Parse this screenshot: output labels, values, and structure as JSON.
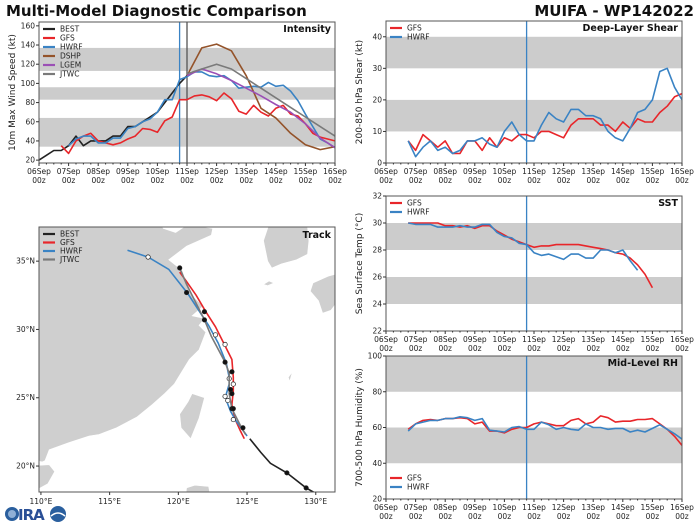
{
  "header": {
    "title": "Multi-Model Diagnostic Comparison",
    "storm": "MUIFA - WP142022"
  },
  "logo": {
    "text": "CIRA"
  },
  "colors": {
    "BEST": "#222222",
    "GFS": "#e8262a",
    "HWRF": "#3a83c4",
    "DSHP": "#94532a",
    "LGEM": "#9b4fb5",
    "JTWC": "#7a7a7a",
    "band": "#cccccc"
  },
  "x_ticks": [
    {
      "date": "06Sep",
      "hour": "00z"
    },
    {
      "date": "07Sep",
      "hour": "00z"
    },
    {
      "date": "08Sep",
      "hour": "00z"
    },
    {
      "date": "09Sep",
      "hour": "00z"
    },
    {
      "date": "10Sep",
      "hour": "00z"
    },
    {
      "date": "11Sep",
      "hour": "00z"
    },
    {
      "date": "12Sep",
      "hour": "00z"
    },
    {
      "date": "13Sep",
      "hour": "00z"
    },
    {
      "date": "14Sep",
      "hour": "00z"
    },
    {
      "date": "15Sep",
      "hour": "00z"
    },
    {
      "date": "16Sep",
      "hour": "00z"
    }
  ],
  "chart_data": [
    {
      "id": "intensity",
      "type": "line",
      "title": "Intensity",
      "ylabel": "10m Max Wind Speed (kt)",
      "xlim": [
        "06Sep00z",
        "16Sep00z"
      ],
      "ylim": [
        17,
        164
      ],
      "yticks": [
        20,
        40,
        60,
        80,
        100,
        120,
        140,
        160
      ],
      "bands": [
        [
          34,
          64
        ],
        [
          83,
          96
        ],
        [
          113,
          137
        ]
      ],
      "vlines": [
        {
          "time": "10Sep18z",
          "color": "#3a83c4"
        },
        {
          "time": "11Sep00z",
          "color": "#555555"
        }
      ],
      "legend": "top-left",
      "series": [
        {
          "name": "BEST",
          "start": "06Sep00z",
          "step_hours": 6,
          "values": [
            20,
            25,
            30,
            30,
            35,
            45,
            35,
            40,
            40,
            40,
            45,
            45,
            55,
            55,
            60,
            65,
            70,
            80,
            90,
            100,
            108
          ]
        },
        {
          "name": "GFS",
          "start": "06Sep18z",
          "step_hours": 6,
          "values": [
            35,
            27,
            40,
            45,
            48,
            40,
            38,
            36,
            38,
            42,
            45,
            53,
            52,
            49,
            61,
            65,
            83,
            83,
            87,
            88,
            86,
            82,
            90,
            84,
            71,
            68,
            77,
            70,
            66,
            74,
            77,
            68,
            66,
            58,
            48,
            44,
            42,
            40
          ]
        },
        {
          "name": "HWRF",
          "start": "07Sep00z",
          "step_hours": 6,
          "values": [
            35,
            42,
            45,
            45,
            38,
            38,
            43,
            43,
            53,
            55,
            60,
            63,
            70,
            83,
            83,
            104,
            107,
            112,
            112,
            108,
            107,
            108,
            103,
            95,
            96,
            97,
            96,
            101,
            97,
            98,
            92,
            82,
            68,
            55,
            42,
            38,
            33
          ]
        },
        {
          "name": "DSHP",
          "start": "11Sep00z",
          "step_hours": 12,
          "values": [
            108,
            137,
            141,
            134,
            108,
            74,
            64,
            48,
            36,
            31,
            34
          ]
        },
        {
          "name": "LGEM",
          "start": "11Sep00z",
          "step_hours": 12,
          "values": [
            108,
            115,
            110,
            103,
            95,
            87,
            78,
            70,
            58,
            43,
            33
          ]
        },
        {
          "name": "JTWC",
          "start": "11Sep00z",
          "step_hours": 12,
          "values": [
            110,
            115,
            120,
            115,
            105,
            95,
            85,
            75,
            65,
            55,
            45
          ]
        }
      ]
    },
    {
      "id": "shear",
      "type": "line",
      "title": "Deep-Layer Shear",
      "ylabel": "200-850 hPa Shear (kt)",
      "xlim": [
        "06Sep00z",
        "16Sep00z"
      ],
      "ylim": [
        0,
        45
      ],
      "yticks": [
        0,
        10,
        20,
        30,
        40
      ],
      "bands": [
        [
          10,
          20
        ],
        [
          30,
          40
        ]
      ],
      "vlines": [
        {
          "time": "10Sep18z",
          "color": "#3a83c4"
        }
      ],
      "legend": "top-left",
      "series": [
        {
          "name": "GFS",
          "start": "06Sep18z",
          "step_hours": 6,
          "values": [
            7,
            4,
            9,
            7,
            5,
            7,
            3,
            3,
            7,
            7,
            4,
            8,
            5,
            8,
            7,
            9,
            9,
            8,
            10,
            10,
            9,
            8,
            12,
            14,
            14,
            14,
            12,
            12,
            10,
            13,
            11,
            14,
            13,
            13,
            16,
            18,
            21,
            22
          ]
        },
        {
          "name": "HWRF",
          "start": "06Sep18z",
          "step_hours": 6,
          "values": [
            7,
            2,
            5,
            7,
            4,
            5,
            3,
            4,
            7,
            7,
            8,
            6,
            5,
            10,
            13,
            9,
            7,
            7,
            12,
            16,
            14,
            13,
            17,
            17,
            15,
            15,
            14,
            10,
            8,
            7,
            11,
            16,
            17,
            20,
            29,
            30,
            24,
            20
          ]
        }
      ]
    },
    {
      "id": "sst",
      "type": "line",
      "title": "SST",
      "ylabel": "Sea Surface Temp (°C)",
      "xlim": [
        "06Sep00z",
        "16Sep00z"
      ],
      "ylim": [
        22,
        32
      ],
      "yticks": [
        22,
        24,
        26,
        28,
        30,
        32
      ],
      "bands": [
        [
          24,
          26
        ],
        [
          28,
          30
        ],
        [
          32,
          34
        ]
      ],
      "vlines": [
        {
          "time": "10Sep18z",
          "color": "#3a83c4"
        }
      ],
      "legend": "top-left",
      "series": [
        {
          "name": "GFS",
          "start": "06Sep18z",
          "step_hours": 6,
          "values": [
            30,
            30,
            30,
            30,
            30,
            29.8,
            29.8,
            29.7,
            29.8,
            29.6,
            29.8,
            29.8,
            29.4,
            29.1,
            28.8,
            28.6,
            28.4,
            28.2,
            28.3,
            28.3,
            28.4,
            28.4,
            28.4,
            28.4,
            28.3,
            28.2,
            28.1,
            28.0,
            27.8,
            27.7,
            27.4,
            26.9,
            26.2,
            25.2
          ]
        },
        {
          "name": "HWRF",
          "start": "06Sep18z",
          "step_hours": 6,
          "values": [
            30,
            29.9,
            29.9,
            29.9,
            29.7,
            29.7,
            29.7,
            29.8,
            29.7,
            29.7,
            29.9,
            29.9,
            29.3,
            29.0,
            28.9,
            28.5,
            28.4,
            27.8,
            27.6,
            27.7,
            27.5,
            27.3,
            27.7,
            27.7,
            27.4,
            27.4,
            28.0,
            28.0,
            27.8,
            28.0,
            27.2,
            26.5
          ]
        }
      ]
    },
    {
      "id": "rh",
      "type": "line",
      "title": "Mid-Level RH",
      "ylabel": "700-500 hPa Humidity (%)",
      "xlim": [
        "06Sep00z",
        "16Sep00z"
      ],
      "ylim": [
        20,
        100
      ],
      "yticks": [
        20,
        40,
        60,
        80,
        100
      ],
      "bands": [
        [
          40,
          60
        ],
        [
          80,
          100
        ]
      ],
      "vlines": [
        {
          "time": "10Sep18z",
          "color": "#3a83c4"
        }
      ],
      "legend": "bottom-left",
      "series": [
        {
          "name": "GFS",
          "start": "06Sep18z",
          "step_hours": 6,
          "values": [
            59,
            62,
            64,
            64.5,
            64,
            65,
            65,
            65.5,
            65,
            62,
            63,
            58,
            58,
            57,
            59,
            60,
            60,
            62,
            63,
            62,
            61,
            61,
            64,
            65,
            62,
            63,
            66.5,
            65.5,
            63,
            63.5,
            63.5,
            64.5,
            64.5,
            65,
            62,
            59,
            55,
            50
          ]
        },
        {
          "name": "HWRF",
          "start": "06Sep18z",
          "step_hours": 6,
          "values": [
            58,
            62,
            63,
            64,
            64,
            65,
            65,
            66,
            65.5,
            64,
            65,
            58.5,
            58,
            57.5,
            60,
            60.5,
            59,
            59,
            63,
            61.5,
            59,
            60,
            59,
            58.5,
            62,
            60,
            60,
            59,
            59.5,
            59.5,
            57.5,
            58.5,
            57.5,
            59.5,
            61.5,
            59,
            56.5,
            53.5
          ]
        }
      ]
    },
    {
      "id": "track",
      "type": "map",
      "title": "Track",
      "lon_range": [
        109.86,
        131.4
      ],
      "lat_range": [
        18.1,
        37.5
      ],
      "lon_ticks": [
        {
          "v": 110,
          "label": "110°E"
        },
        {
          "v": 115,
          "label": "115°E"
        },
        {
          "v": 120,
          "label": "120°E"
        },
        {
          "v": 125,
          "label": "125°E"
        },
        {
          "v": 130,
          "label": "130°E"
        }
      ],
      "lat_ticks": [
        {
          "v": 20,
          "label": "20°N"
        },
        {
          "v": 25,
          "label": "25°N"
        },
        {
          "v": 30,
          "label": "30°N"
        },
        {
          "v": 35,
          "label": "35°N"
        }
      ],
      "legend": "top-left",
      "tracks": [
        {
          "name": "BEST",
          "points": [
            [
              130.0,
              18.0
            ],
            [
              129.3,
              18.4
            ],
            [
              127.9,
              19.5
            ],
            [
              126.7,
              20.2
            ],
            [
              126.0,
              21.0
            ],
            [
              125.2,
              22.0
            ]
          ],
          "markers": "filled",
          "marker_points": [
            [
              127.9,
              19.5
            ],
            [
              129.3,
              18.4
            ]
          ]
        },
        {
          "name": "GFS",
          "points": [
            [
              124.8,
              22.0
            ],
            [
              124.5,
              22.6
            ],
            [
              124.1,
              23.5
            ],
            [
              123.9,
              24.5
            ],
            [
              124.0,
              25.5
            ],
            [
              124.0,
              26.5
            ],
            [
              123.9,
              27.8
            ],
            [
              123.3,
              29.0
            ],
            [
              122.7,
              30.2
            ],
            [
              122.0,
              31.3
            ],
            [
              121.3,
              32.5
            ],
            [
              120.6,
              33.5
            ],
            [
              120.1,
              34.2
            ]
          ]
        },
        {
          "name": "HWRF",
          "points": [
            [
              125.0,
              22.2
            ],
            [
              124.2,
              23.3
            ],
            [
              123.8,
              24.0
            ],
            [
              123.5,
              24.8
            ],
            [
              123.5,
              25.3
            ],
            [
              123.7,
              26.0
            ],
            [
              123.7,
              26.5
            ],
            [
              123.5,
              27.5
            ],
            [
              122.9,
              29.0
            ],
            [
              122.2,
              30.3
            ],
            [
              120.7,
              32.6
            ],
            [
              119.3,
              34.4
            ],
            [
              117.8,
              35.3
            ],
            [
              116.3,
              35.8
            ]
          ],
          "markers": "open",
          "marker_points": [
            [
              124.0,
              23.4
            ],
            [
              123.6,
              24.8
            ],
            [
              123.4,
              25.1
            ],
            [
              123.7,
              26.4
            ],
            [
              124.0,
              26.0
            ],
            [
              123.4,
              28.9
            ],
            [
              122.7,
              29.6
            ],
            [
              117.8,
              35.3
            ]
          ]
        },
        {
          "name": "JTWC",
          "points": [
            [
              124.9,
              22.3
            ],
            [
              124.6,
              22.8
            ],
            [
              123.9,
              24.2
            ],
            [
              123.7,
              25.3
            ],
            [
              123.7,
              26.8
            ],
            [
              123.4,
              27.6
            ],
            [
              122.4,
              29.5
            ],
            [
              121.9,
              30.7
            ],
            [
              120.6,
              33.3
            ],
            [
              120.1,
              34.5
            ]
          ],
          "markers": "filled",
          "marker_points": [
            [
              124.7,
              22.8
            ],
            [
              123.9,
              24.2
            ],
            [
              124.0,
              24.2
            ],
            [
              123.9,
              25.3
            ],
            [
              123.8,
              25.6
            ],
            [
              123.9,
              26.9
            ],
            [
              123.4,
              27.6
            ],
            [
              121.9,
              30.7
            ],
            [
              121.9,
              31.3
            ],
            [
              120.6,
              32.7
            ],
            [
              120.1,
              34.5
            ]
          ]
        }
      ]
    }
  ]
}
